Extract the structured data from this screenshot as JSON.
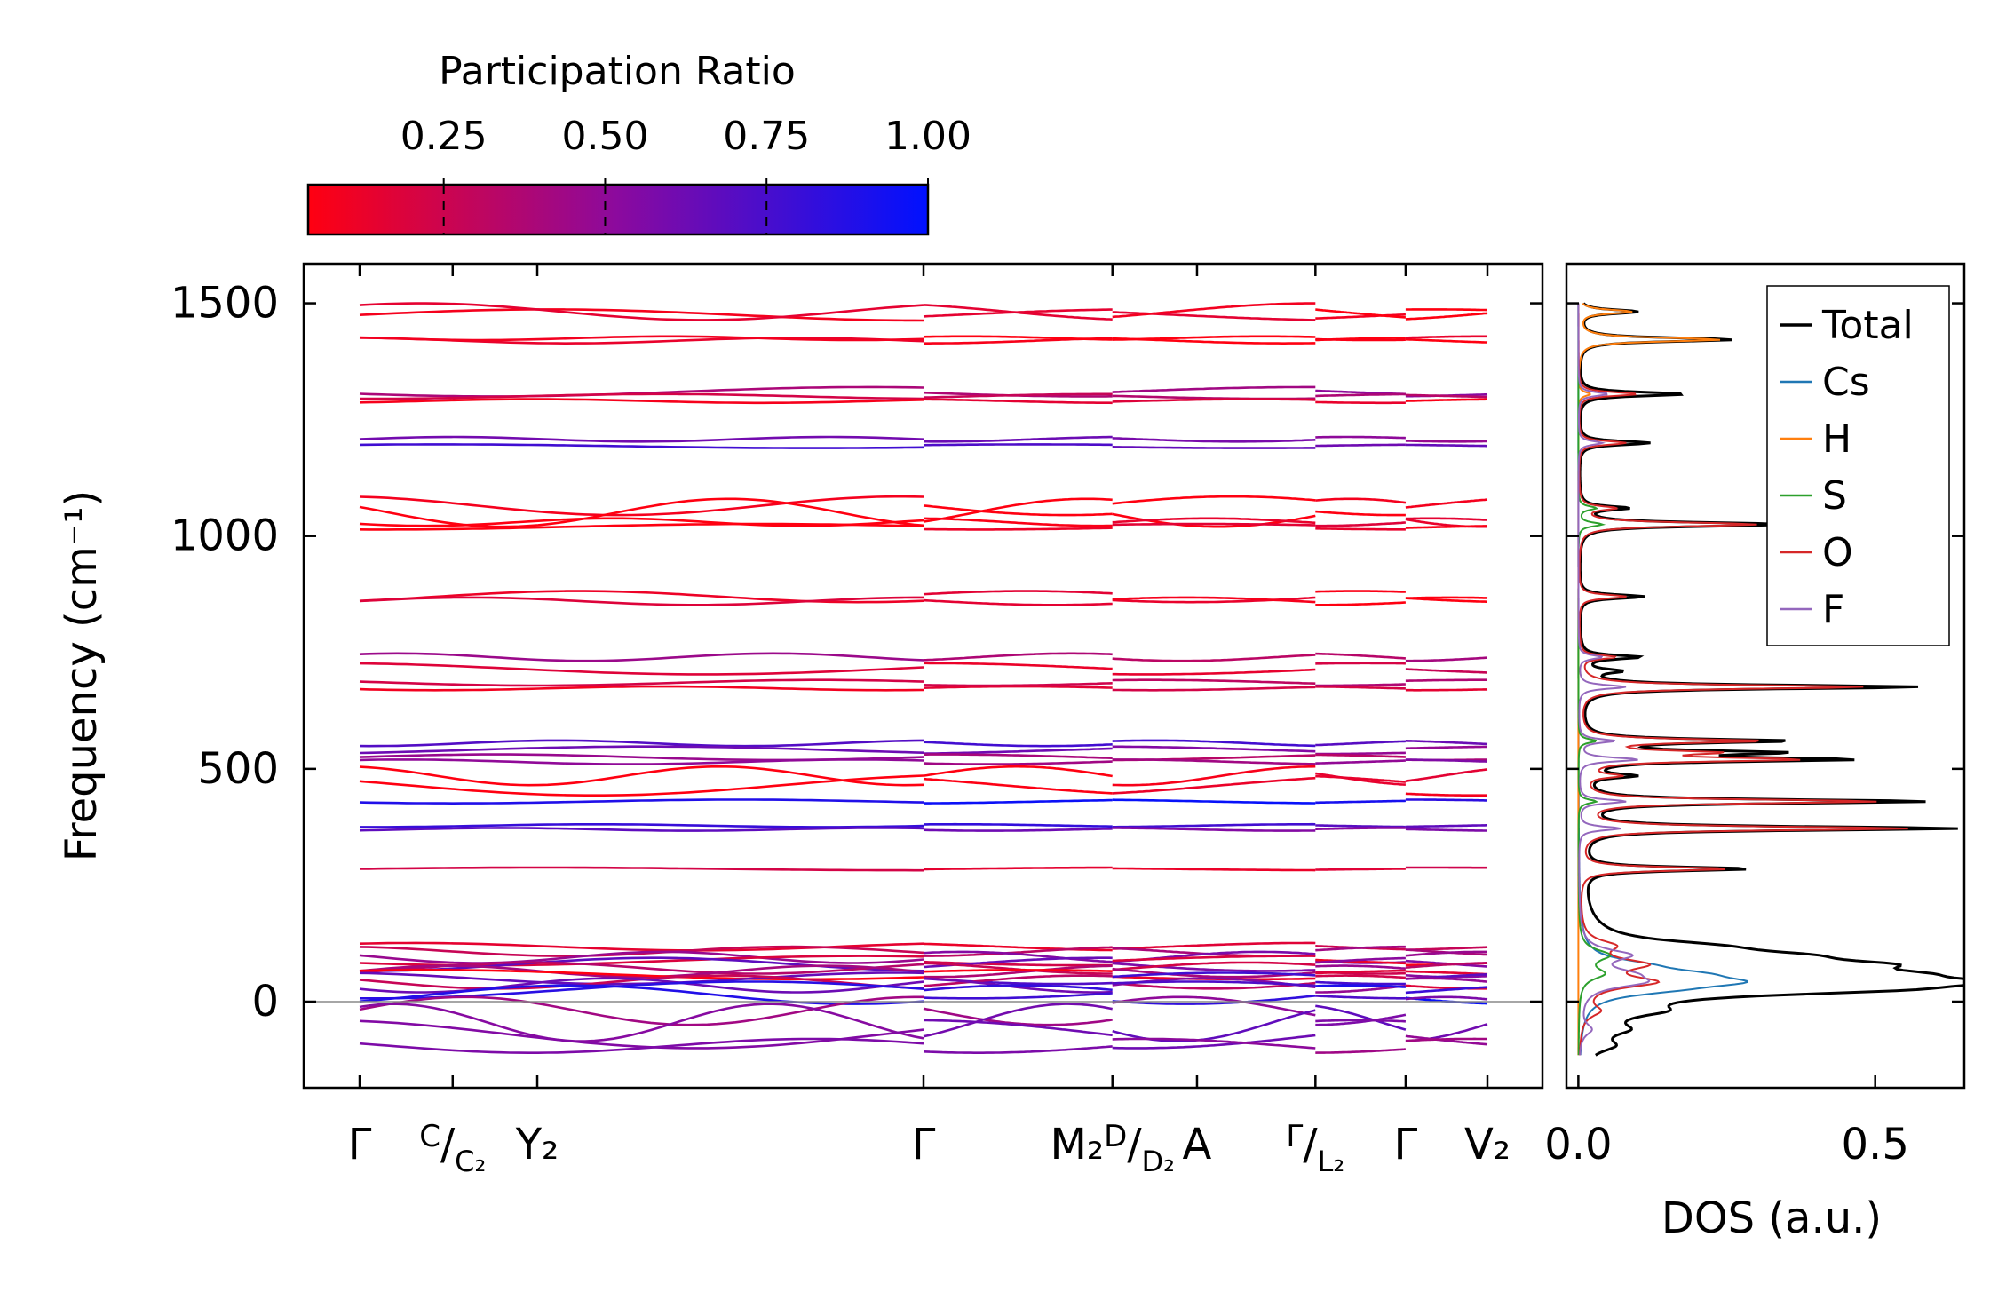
{
  "colorbar": {
    "title": "Participation Ratio",
    "ticks": [
      "0.25",
      "0.50",
      "0.75",
      "1.00"
    ],
    "tick_values": [
      0.25,
      0.5,
      0.75,
      1.0
    ],
    "range": [
      0.04,
      1.0
    ],
    "color_low": "#ff0011",
    "color_mid": "#8b0a9e",
    "color_high": "#0011ff"
  },
  "chart_data": [
    {
      "type": "line",
      "name": "phonon-band-structure",
      "ylabel": "Frequency (cm⁻¹)",
      "ylim": [
        -185,
        1585
      ],
      "yticks": [
        0,
        500,
        1000,
        1500
      ],
      "ytick_labels": [
        "0",
        "500",
        "1000",
        "1500"
      ],
      "kpath_ticks": [
        0.0,
        0.0825,
        0.1575,
        0.5,
        0.6675,
        0.7425,
        0.8475,
        0.9275,
        1.0
      ],
      "x_labels": [
        {
          "x": 0.0,
          "main": "Γ",
          "sup": "",
          "sub": ""
        },
        {
          "x": 0.13,
          "main": "C",
          "sup": "",
          "sub": "C₂"
        },
        {
          "x": 0.235,
          "main": "Y₂",
          "sup": "",
          "sub": ""
        },
        {
          "x": 0.5,
          "main": "Γ",
          "sup": "",
          "sub": ""
        },
        {
          "x": 0.68,
          "main": "M₂",
          "sup": "D",
          "sub": "D₂"
        },
        {
          "x": 0.842,
          "main": "A",
          "sup": "",
          "sub": ""
        },
        {
          "x": 0.935,
          "main": "Γ",
          "sup": "",
          "sub": "L₂"
        },
        {
          "x": 1.37,
          "main": "Γ",
          "sup": "",
          "sub": ""
        },
        {
          "x": 1.6,
          "main": "V₂",
          "sup": "",
          "sub": ""
        }
      ],
      "segment_breaks": [
        0.5,
        0.8475,
        0.9275,
        1.22,
        1.36
      ],
      "bands": [
        {
          "f": 1475,
          "amp": 12,
          "pr": 0.08
        },
        {
          "f": 1482,
          "amp": 18,
          "pr": 0.08
        },
        {
          "f": 1420,
          "amp": 6,
          "pr": 0.06
        },
        {
          "f": 1425,
          "amp": 4,
          "pr": 0.08
        },
        {
          "f": 1310,
          "amp": 10,
          "pr": 0.45
        },
        {
          "f": 1300,
          "amp": 5,
          "pr": 0.3
        },
        {
          "f": 1290,
          "amp": 4,
          "pr": 0.1
        },
        {
          "f": 1208,
          "amp": 5,
          "pr": 0.55
        },
        {
          "f": 1193,
          "amp": 4,
          "pr": 0.7
        },
        {
          "f": 1065,
          "amp": 20,
          "pr": 0.05
        },
        {
          "f": 1050,
          "amp": 30,
          "pr": 0.05
        },
        {
          "f": 1030,
          "amp": 8,
          "pr": 0.1
        },
        {
          "f": 1020,
          "amp": 6,
          "pr": 0.08
        },
        {
          "f": 870,
          "amp": 12,
          "pr": 0.08
        },
        {
          "f": 860,
          "amp": 8,
          "pr": 0.1
        },
        {
          "f": 740,
          "amp": 8,
          "pr": 0.4
        },
        {
          "f": 715,
          "amp": 12,
          "pr": 0.2
        },
        {
          "f": 685,
          "amp": 6,
          "pr": 0.3
        },
        {
          "f": 673,
          "amp": 4,
          "pr": 0.15
        },
        {
          "f": 555,
          "amp": 6,
          "pr": 0.7
        },
        {
          "f": 540,
          "amp": 8,
          "pr": 0.55
        },
        {
          "f": 525,
          "amp": 6,
          "pr": 0.4
        },
        {
          "f": 515,
          "amp": 5,
          "pr": 0.5
        },
        {
          "f": 485,
          "amp": 20,
          "pr": 0.08
        },
        {
          "f": 465,
          "amp": 22,
          "pr": 0.06
        },
        {
          "f": 430,
          "amp": 4,
          "pr": 0.9
        },
        {
          "f": 378,
          "amp": 3,
          "pr": 0.75
        },
        {
          "f": 370,
          "amp": 3,
          "pr": 0.6
        },
        {
          "f": 285,
          "amp": 3,
          "pr": 0.2
        },
        {
          "f": 118,
          "amp": 8,
          "pr": 0.2
        },
        {
          "f": 108,
          "amp": 10,
          "pr": 0.35
        },
        {
          "f": 95,
          "amp": 12,
          "pr": 0.5
        },
        {
          "f": 88,
          "amp": 10,
          "pr": 0.15
        },
        {
          "f": 80,
          "amp": 14,
          "pr": 0.6
        },
        {
          "f": 72,
          "amp": 12,
          "pr": 0.3
        },
        {
          "f": 65,
          "amp": 12,
          "pr": 0.45
        },
        {
          "f": 58,
          "amp": 10,
          "pr": 0.1
        },
        {
          "f": 50,
          "amp": 12,
          "pr": 0.7
        },
        {
          "f": 42,
          "amp": 14,
          "pr": 0.25
        },
        {
          "f": 35,
          "amp": 15,
          "pr": 0.55
        },
        {
          "f": 25,
          "amp": 18,
          "pr": 0.8
        },
        {
          "f": 15,
          "amp": 20,
          "pr": 0.9
        },
        {
          "f": -20,
          "amp": 30,
          "pr": 0.5
        },
        {
          "f": -45,
          "amp": 40,
          "pr": 0.6
        },
        {
          "f": -70,
          "amp": 30,
          "pr": 0.55
        },
        {
          "f": -95,
          "amp": 15,
          "pr": 0.5
        }
      ],
      "zero_line": 0
    },
    {
      "type": "line",
      "name": "density-of-states",
      "xlabel": "DOS (a.u.)",
      "xlim": [
        -0.02,
        0.65
      ],
      "xticks": [
        0.0,
        0.5
      ],
      "xtick_labels": [
        "0.0",
        "0.5"
      ],
      "ylim": [
        -185,
        1585
      ],
      "legend_position": "top-right",
      "series": [
        {
          "name": "Total",
          "color": "#000000",
          "peaks": [
            [
              1482,
              0.1
            ],
            [
              1422,
              0.26
            ],
            [
              1305,
              0.18
            ],
            [
              1200,
              0.12
            ],
            [
              1060,
              0.08
            ],
            [
              1025,
              0.35
            ],
            [
              870,
              0.11
            ],
            [
              740,
              0.1
            ],
            [
              710,
              0.06
            ],
            [
              676,
              0.57
            ],
            [
              560,
              0.34
            ],
            [
              535,
              0.3
            ],
            [
              520,
              0.43
            ],
            [
              485,
              0.08
            ],
            [
              430,
              0.58
            ],
            [
              372,
              0.63
            ],
            [
              285,
              0.28
            ],
            [
              120,
              0.12
            ],
            [
              100,
              0.2
            ],
            [
              80,
              0.3
            ],
            [
              60,
              0.27
            ],
            [
              42,
              0.41
            ],
            [
              25,
              0.32
            ],
            [
              -20,
              0.08
            ],
            [
              -60,
              0.05
            ],
            [
              -95,
              0.04
            ]
          ]
        },
        {
          "name": "Cs",
          "color": "#1f77b4",
          "peaks": [
            [
              80,
              0.06
            ],
            [
              60,
              0.12
            ],
            [
              42,
              0.2
            ],
            [
              25,
              0.08
            ]
          ]
        },
        {
          "name": "H",
          "color": "#ff7f0e",
          "peaks": [
            [
              1482,
              0.09
            ],
            [
              1422,
              0.24
            ],
            [
              1305,
              0.02
            ]
          ]
        },
        {
          "name": "S",
          "color": "#2ca02c",
          "peaks": [
            [
              1060,
              0.03
            ],
            [
              1025,
              0.04
            ],
            [
              560,
              0.03
            ],
            [
              430,
              0.03
            ],
            [
              100,
              0.05
            ],
            [
              60,
              0.04
            ]
          ]
        },
        {
          "name": "O",
          "color": "#d62728",
          "peaks": [
            [
              1305,
              0.1
            ],
            [
              1200,
              0.08
            ],
            [
              1060,
              0.06
            ],
            [
              1025,
              0.3
            ],
            [
              870,
              0.08
            ],
            [
              740,
              0.06
            ],
            [
              676,
              0.48
            ],
            [
              560,
              0.3
            ],
            [
              535,
              0.2
            ],
            [
              520,
              0.35
            ],
            [
              485,
              0.06
            ],
            [
              430,
              0.5
            ],
            [
              372,
              0.55
            ],
            [
              285,
              0.25
            ],
            [
              120,
              0.05
            ],
            [
              80,
              0.1
            ],
            [
              42,
              0.12
            ],
            [
              -20,
              0.03
            ]
          ]
        },
        {
          "name": "F",
          "color": "#9467bd",
          "peaks": [
            [
              1305,
              0.05
            ],
            [
              1200,
              0.04
            ],
            [
              740,
              0.04
            ],
            [
              676,
              0.08
            ],
            [
              560,
              0.06
            ],
            [
              520,
              0.1
            ],
            [
              430,
              0.08
            ],
            [
              372,
              0.07
            ],
            [
              100,
              0.08
            ],
            [
              60,
              0.06
            ],
            [
              42,
              0.09
            ],
            [
              -60,
              0.02
            ]
          ]
        }
      ]
    }
  ]
}
